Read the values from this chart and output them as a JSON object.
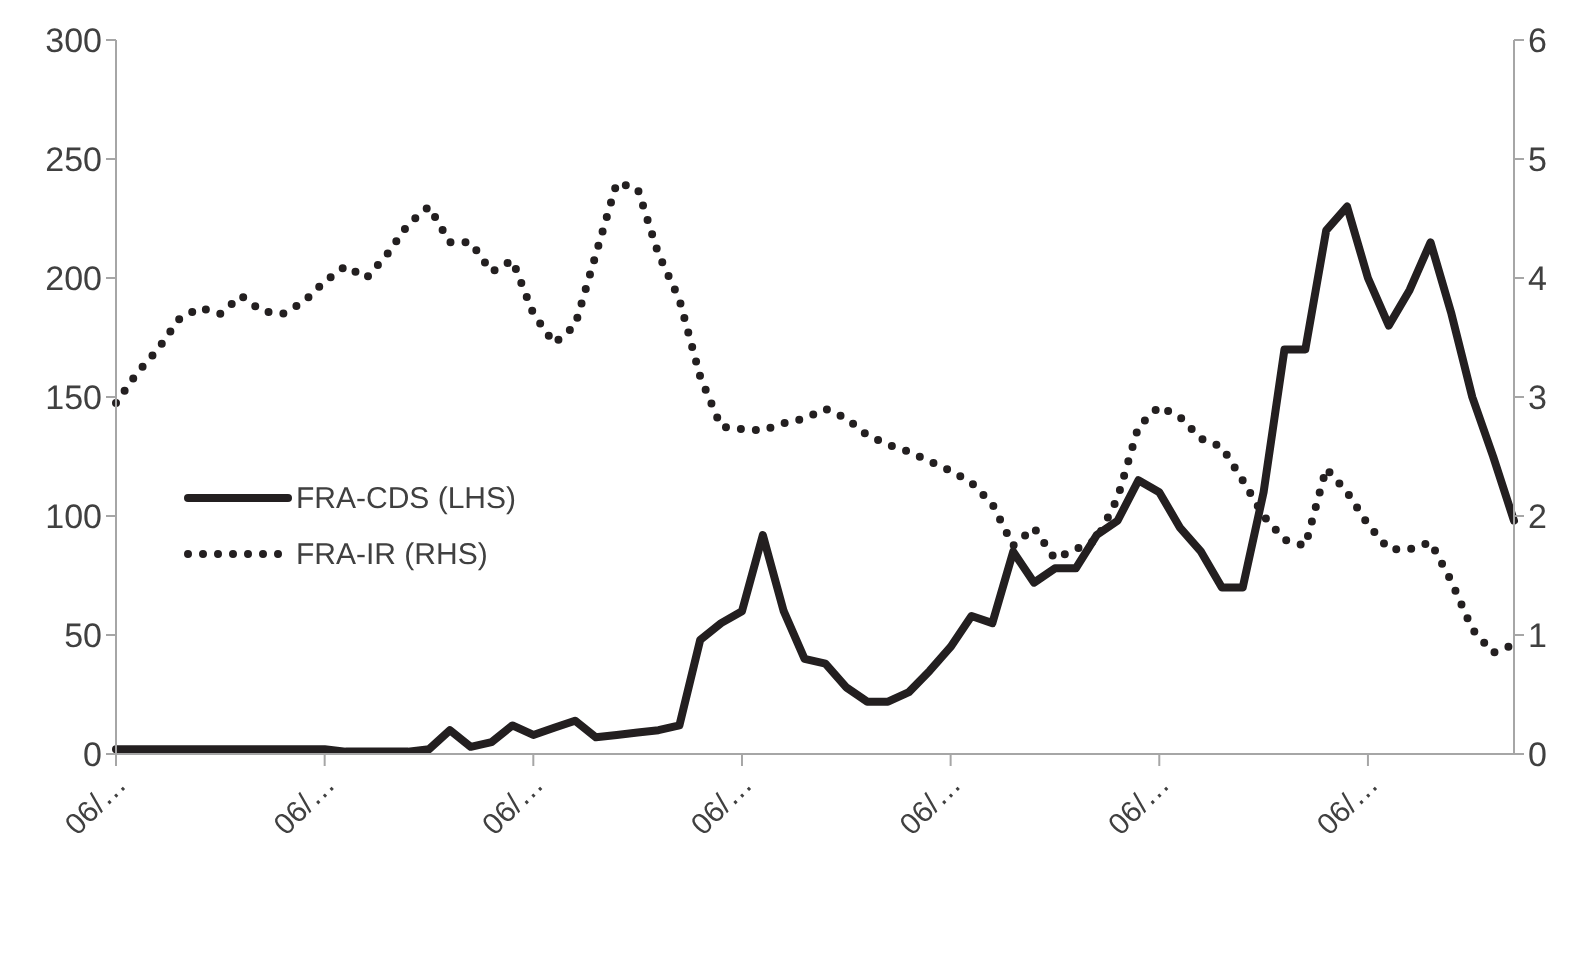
{
  "chart_data": {
    "type": "line",
    "categories": [
      "06/…",
      null,
      null,
      null,
      null,
      null,
      null,
      null,
      null,
      null,
      "06/…",
      null,
      null,
      null,
      null,
      null,
      null,
      null,
      null,
      null,
      "06/…",
      null,
      null,
      null,
      null,
      null,
      null,
      null,
      null,
      null,
      "06/…",
      null,
      null,
      null,
      null,
      null,
      null,
      null,
      null,
      null,
      "06/…",
      null,
      null,
      null,
      null,
      null,
      null,
      null,
      null,
      null,
      "06/…",
      null,
      null,
      null,
      null,
      null,
      null,
      null,
      null,
      null,
      "06/…",
      null,
      null,
      null,
      null,
      null,
      null,
      null
    ],
    "series": [
      {
        "name": "FRA-CDS (LHS)",
        "color": "#231f20",
        "line_style": "solid",
        "values": [
          2,
          2,
          2,
          2,
          2,
          2,
          2,
          2,
          2,
          2,
          2,
          1,
          1,
          1,
          1,
          2,
          10,
          3,
          5,
          12,
          8,
          11,
          14,
          7,
          8,
          9,
          10,
          12,
          48,
          55,
          60,
          92,
          60,
          40,
          38,
          28,
          22,
          22,
          26,
          35,
          45,
          58,
          55,
          85,
          72,
          78,
          78,
          92,
          98,
          115,
          110,
          95,
          85,
          70,
          70,
          110,
          170,
          170,
          220,
          230,
          200,
          180,
          195,
          215,
          185,
          150,
          125,
          98
        ]
      },
      {
        "name": "FRA-IR (RHS)",
        "color": "#231f20",
        "line_style": "dotted",
        "axis": "y2",
        "values": [
          2.95,
          3.2,
          3.4,
          3.65,
          3.75,
          3.7,
          3.85,
          3.72,
          3.7,
          3.8,
          3.97,
          4.1,
          4.0,
          4.2,
          4.45,
          4.6,
          4.3,
          4.3,
          4.05,
          4.15,
          3.7,
          3.45,
          3.6,
          4.2,
          4.8,
          4.75,
          4.2,
          3.82,
          3.17,
          2.75,
          2.73,
          2.72,
          2.78,
          2.82,
          2.9,
          2.82,
          2.68,
          2.6,
          2.54,
          2.46,
          2.38,
          2.28,
          2.1,
          1.75,
          1.9,
          1.64,
          1.72,
          1.8,
          2.15,
          2.75,
          2.92,
          2.83,
          2.65,
          2.58,
          2.3,
          2.0,
          1.8,
          1.75,
          2.4,
          2.2,
          1.93,
          1.72,
          1.72,
          1.78,
          1.45,
          1.05,
          0.85,
          0.92
        ]
      }
    ],
    "ylim": [
      0,
      300
    ],
    "yticks": [
      0,
      50,
      100,
      150,
      200,
      250,
      300
    ],
    "y2lim": [
      0,
      6
    ],
    "y2ticks": [
      0,
      1,
      2,
      3,
      4,
      5,
      6
    ],
    "grid": false,
    "legend": "left",
    "marker": "none"
  }
}
